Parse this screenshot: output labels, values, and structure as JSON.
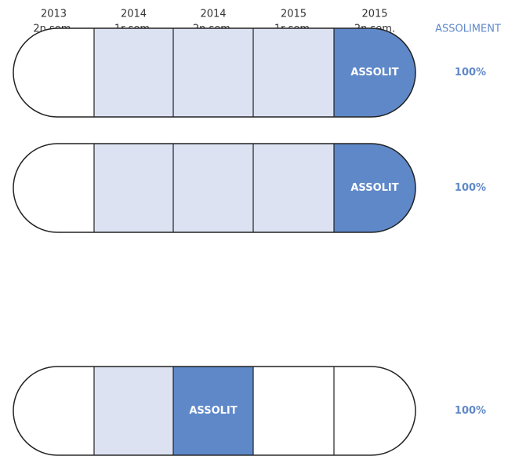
{
  "columns": [
    {
      "year": "2013",
      "sem": "2n sem."
    },
    {
      "year": "2014",
      "sem": "1r sem."
    },
    {
      "year": "2014",
      "sem": "2n sem."
    },
    {
      "year": "2015",
      "sem": "1r sem."
    },
    {
      "year": "2015",
      "sem": "2n sem."
    }
  ],
  "result_header": "ASSOLIMENT",
  "rows": [
    {
      "cells": [
        {
          "fill": "#ffffff"
        },
        {
          "fill": "#dce2f2"
        },
        {
          "fill": "#dce2f2"
        },
        {
          "fill": "#dce2f2"
        },
        {
          "fill": "#5f88c9",
          "label": "ASSOLIT"
        }
      ],
      "value": "100%"
    },
    {
      "cells": [
        {
          "fill": "#ffffff"
        },
        {
          "fill": "#dce2f2"
        },
        {
          "fill": "#dce2f2"
        },
        {
          "fill": "#dce2f2"
        },
        {
          "fill": "#5f88c9",
          "label": "ASSOLIT"
        }
      ],
      "value": "100%"
    },
    {
      "cells": [
        {
          "fill": "#ffffff"
        },
        {
          "fill": "#dce2f2"
        },
        {
          "fill": "#5f88c9",
          "label": "ASSOLIT"
        },
        {
          "fill": "#ffffff"
        },
        {
          "fill": "#ffffff"
        }
      ],
      "value": "100%"
    }
  ]
}
